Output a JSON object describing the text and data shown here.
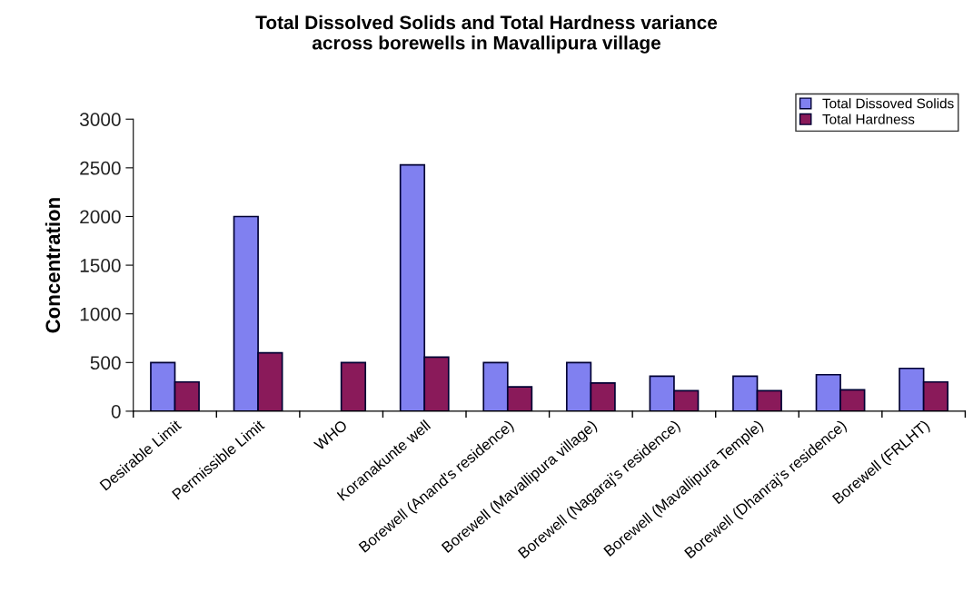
{
  "chart_data": {
    "type": "bar",
    "title": "Total Dissolved Solids and Total Hardness variance\nacross borewells in Mavallipura village",
    "ylabel": "Concentration",
    "categories": [
      "Desirable Limit",
      "Permissible Limit",
      "WHO",
      "Koranakunte well",
      "Borewell (Anand's residence)",
      "Borewell (Mavallipura village)",
      "Borewell (Nagaraj's residence)",
      "Borewell (Mavallipura Temple)",
      "Borewell (Dhanraj's residence)",
      "Borewell (FRLHT)"
    ],
    "series": [
      {
        "name": "Total Dissoved Solids",
        "color": "#8080f0",
        "values": [
          500,
          2000,
          null,
          2530,
          500,
          500,
          360,
          360,
          375,
          440
        ]
      },
      {
        "name": "Total Hardness",
        "color": "#8a1a5a",
        "values": [
          300,
          600,
          500,
          555,
          250,
          290,
          210,
          210,
          220,
          300
        ]
      }
    ],
    "ylim": [
      0,
      3000
    ],
    "yticks": [
      0,
      500,
      1000,
      1500,
      2000,
      2500,
      3000
    ],
    "grid": false,
    "legend": "top right"
  }
}
